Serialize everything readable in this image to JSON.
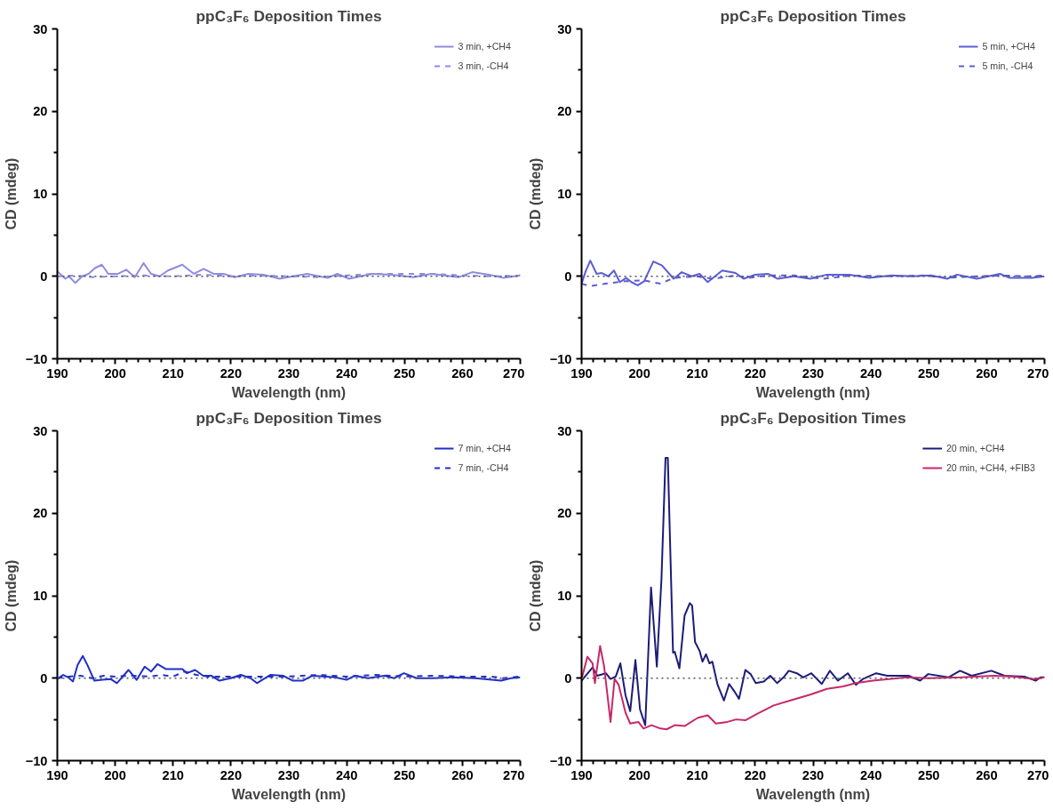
{
  "chart_data": [
    {
      "type": "line",
      "title": "ppC₃F₆ Deposition Times",
      "xlabel": "Wavelength (nm)",
      "ylabel": "CD (mdeg)",
      "xlim": [
        190,
        270
      ],
      "ylim": [
        -10,
        30
      ],
      "xticks": [
        190,
        {
          "value": 192,
          "label": null
        },
        {
          "value": 194,
          "label": null
        },
        {
          "value": 196,
          "label": null
        },
        {
          "value": 198,
          "label": null
        },
        200,
        {
          "value": 202,
          "label": null
        },
        {
          "value": 204,
          "label": null
        },
        {
          "value": 206,
          "label": null
        },
        {
          "value": 208,
          "label": null
        },
        210,
        {
          "value": 212,
          "label": null
        },
        {
          "value": 214,
          "label": null
        },
        {
          "value": 216,
          "label": null
        },
        {
          "value": 218,
          "label": null
        },
        220,
        {
          "value": 222,
          "label": null
        },
        {
          "value": 224,
          "label": null
        },
        {
          "value": 226,
          "label": null
        },
        {
          "value": 228,
          "label": null
        },
        230,
        {
          "value": 232,
          "label": null
        },
        {
          "value": 234,
          "label": null
        },
        {
          "value": 236,
          "label": null
        },
        {
          "value": 238,
          "label": null
        },
        240,
        {
          "value": 242,
          "label": null
        },
        {
          "value": 244,
          "label": null
        },
        {
          "value": 246,
          "label": null
        },
        {
          "value": 248,
          "label": null
        },
        250,
        {
          "value": 252,
          "label": null
        },
        {
          "value": 254,
          "label": null
        },
        {
          "value": 256,
          "label": null
        },
        {
          "value": 258,
          "label": null
        },
        260,
        {
          "value": 262,
          "label": null
        },
        {
          "value": 264,
          "label": null
        },
        {
          "value": 266,
          "label": null
        },
        {
          "value": 268,
          "label": null
        },
        270
      ],
      "yticks": [
        -10,
        {
          "value": -5,
          "label": null
        },
        0,
        {
          "value": 5,
          "label": null
        },
        10,
        {
          "value": 15,
          "label": null
        },
        20,
        {
          "value": 25,
          "label": null
        },
        30
      ],
      "legend": "top right",
      "ref_lines": [
        {
          "axis": "y",
          "value": 0,
          "color": "#555555",
          "line_style": "dotted"
        }
      ],
      "series": [
        {
          "name": "3 min, +CH4",
          "color": "#8f8be0",
          "line_style": "solid",
          "x": [
            190,
            191.4,
            192,
            193.1,
            194.3,
            195.4,
            196.5,
            197.7,
            198.8,
            200.5,
            201.9,
            203.4,
            204.9,
            206.2,
            207.7,
            209.1,
            211.6,
            213.6,
            215.3,
            217,
            218.7,
            220.7,
            223,
            225.6,
            228.4,
            230.7,
            233.2,
            236.7,
            238.4,
            240.4,
            244.4,
            247.8,
            251.5,
            254.6,
            259.4,
            261.7,
            264.6,
            267.1,
            270
          ],
          "values": [
            0.6,
            -0.3,
            0,
            -0.8,
            0,
            0.3,
            1.0,
            1.4,
            0.3,
            0.3,
            0.8,
            -0.1,
            1.6,
            0.3,
            0,
            0.7,
            1.4,
            0.3,
            0.9,
            0.3,
            0.3,
            -0.1,
            0.3,
            0.2,
            -0.3,
            0,
            0.3,
            -0.2,
            0.3,
            -0.3,
            0.3,
            0.2,
            -0.1,
            0.3,
            -0.1,
            0.5,
            0.2,
            -0.2,
            0.1
          ]
        },
        {
          "name": "3 min, -CH4",
          "color": "#8f8be0",
          "line_style": "dashed",
          "x": [
            190,
            193,
            196,
            200,
            205,
            210,
            215,
            220,
            225,
            230,
            235,
            240,
            245,
            250,
            255,
            260,
            265,
            270
          ],
          "values": [
            0,
            0.1,
            -0.1,
            0,
            0.1,
            0,
            0.2,
            0,
            0.1,
            0,
            -0.1,
            0.1,
            0.3,
            0.3,
            0.3,
            0.1,
            0,
            0.1
          ]
        }
      ]
    },
    {
      "type": "line",
      "title": "ppC₃F₆ Deposition Times",
      "xlabel": "Wavelength (nm)",
      "ylabel": "CD (mdeg)",
      "xlim": [
        190,
        270
      ],
      "ylim": [
        -10,
        30
      ],
      "xticks": [
        190,
        {
          "value": 192,
          "label": null
        },
        {
          "value": 194,
          "label": null
        },
        {
          "value": 196,
          "label": null
        },
        {
          "value": 198,
          "label": null
        },
        200,
        {
          "value": 202,
          "label": null
        },
        {
          "value": 204,
          "label": null
        },
        {
          "value": 206,
          "label": null
        },
        {
          "value": 208,
          "label": null
        },
        210,
        {
          "value": 212,
          "label": null
        },
        {
          "value": 214,
          "label": null
        },
        {
          "value": 216,
          "label": null
        },
        {
          "value": 218,
          "label": null
        },
        220,
        {
          "value": 222,
          "label": null
        },
        {
          "value": 224,
          "label": null
        },
        {
          "value": 226,
          "label": null
        },
        {
          "value": 228,
          "label": null
        },
        230,
        {
          "value": 232,
          "label": null
        },
        {
          "value": 234,
          "label": null
        },
        {
          "value": 236,
          "label": null
        },
        {
          "value": 238,
          "label": null
        },
        240,
        {
          "value": 242,
          "label": null
        },
        {
          "value": 244,
          "label": null
        },
        {
          "value": 246,
          "label": null
        },
        {
          "value": 248,
          "label": null
        },
        250,
        {
          "value": 252,
          "label": null
        },
        {
          "value": 254,
          "label": null
        },
        {
          "value": 256,
          "label": null
        },
        {
          "value": 258,
          "label": null
        },
        260,
        {
          "value": 262,
          "label": null
        },
        {
          "value": 264,
          "label": null
        },
        {
          "value": 266,
          "label": null
        },
        {
          "value": 268,
          "label": null
        },
        270
      ],
      "yticks": [
        -10,
        {
          "value": -5,
          "label": null
        },
        0,
        {
          "value": 5,
          "label": null
        },
        10,
        {
          "value": 15,
          "label": null
        },
        20,
        {
          "value": 25,
          "label": null
        },
        30
      ],
      "legend": "top right",
      "ref_lines": [
        {
          "axis": "y",
          "value": 0,
          "color": "#555555",
          "line_style": "dotted"
        }
      ],
      "series": [
        {
          "name": "5 min, +CH4",
          "color": "#5c5cd6",
          "line_style": "solid",
          "x": [
            190,
            190.7,
            191.5,
            192.6,
            193.5,
            194.6,
            195.6,
            196.6,
            197.7,
            198.6,
            199.7,
            200.8,
            202.4,
            203.9,
            205.9,
            207.3,
            209,
            210.4,
            211.8,
            214.3,
            216.6,
            218,
            220,
            222.2,
            223.9,
            226.7,
            229.5,
            232.4,
            236.3,
            239.7,
            243.6,
            247,
            250.4,
            253.2,
            254.9,
            258.3,
            262.3,
            264,
            267.9,
            270
          ],
          "values": [
            -0.9,
            0.6,
            1.9,
            0.3,
            0.4,
            0,
            0.7,
            -0.7,
            -0.2,
            -0.7,
            -1.1,
            -0.6,
            1.8,
            1.3,
            -0.3,
            0.5,
            0,
            0.3,
            -0.7,
            0.7,
            0.4,
            -0.3,
            0.2,
            0.3,
            -0.3,
            0,
            -0.3,
            0.2,
            0.2,
            -0.2,
            0.1,
            0,
            0.1,
            -0.3,
            0.2,
            -0.3,
            0.3,
            -0.2,
            -0.2,
            0
          ]
        },
        {
          "name": "5 min, -CH4",
          "color": "#5c5cd6",
          "line_style": "dashed",
          "x": [
            190,
            191.5,
            194.1,
            197.5,
            200.8,
            203.6,
            205.9,
            209.8,
            212.7,
            216.6,
            218.8,
            222.2,
            226.7,
            231.7,
            236.8,
            243.6,
            249.2,
            253.2,
            258.3,
            262.8,
            267.3,
            270
          ],
          "values": [
            -0.9,
            -1.2,
            -0.9,
            -0.6,
            -0.5,
            -0.9,
            -0.2,
            0,
            -0.3,
            0.1,
            -0.2,
            0.1,
            0.1,
            -0.3,
            0.1,
            0,
            0.1,
            -0.2,
            0,
            0.1,
            0,
            0.1
          ]
        }
      ]
    },
    {
      "type": "line",
      "title": "ppC₃F₆ Deposition Times",
      "xlabel": "Wavelength (nm)",
      "ylabel": "CD (mdeg)",
      "xlim": [
        190,
        270
      ],
      "ylim": [
        -10,
        30
      ],
      "xticks": [
        190,
        {
          "value": 192,
          "label": null
        },
        {
          "value": 194,
          "label": null
        },
        {
          "value": 196,
          "label": null
        },
        {
          "value": 198,
          "label": null
        },
        200,
        {
          "value": 202,
          "label": null
        },
        {
          "value": 204,
          "label": null
        },
        {
          "value": 206,
          "label": null
        },
        {
          "value": 208,
          "label": null
        },
        210,
        {
          "value": 212,
          "label": null
        },
        {
          "value": 214,
          "label": null
        },
        {
          "value": 216,
          "label": null
        },
        {
          "value": 218,
          "label": null
        },
        220,
        {
          "value": 222,
          "label": null
        },
        {
          "value": 224,
          "label": null
        },
        {
          "value": 226,
          "label": null
        },
        {
          "value": 228,
          "label": null
        },
        230,
        {
          "value": 232,
          "label": null
        },
        {
          "value": 234,
          "label": null
        },
        {
          "value": 236,
          "label": null
        },
        {
          "value": 238,
          "label": null
        },
        240,
        {
          "value": 242,
          "label": null
        },
        {
          "value": 244,
          "label": null
        },
        {
          "value": 246,
          "label": null
        },
        {
          "value": 248,
          "label": null
        },
        250,
        {
          "value": 252,
          "label": null
        },
        {
          "value": 254,
          "label": null
        },
        {
          "value": 256,
          "label": null
        },
        {
          "value": 258,
          "label": null
        },
        260,
        {
          "value": 262,
          "label": null
        },
        {
          "value": 264,
          "label": null
        },
        {
          "value": 266,
          "label": null
        },
        {
          "value": 268,
          "label": null
        },
        270
      ],
      "yticks": [
        -10,
        {
          "value": -5,
          "label": null
        },
        0,
        {
          "value": 5,
          "label": null
        },
        10,
        {
          "value": 15,
          "label": null
        },
        20,
        {
          "value": 25,
          "label": null
        },
        30
      ],
      "legend": "top right",
      "ref_lines": [
        {
          "axis": "y",
          "value": 0,
          "color": "#555555",
          "line_style": "dotted"
        }
      ],
      "series": [
        {
          "name": "7 min, +CH4",
          "color": "#1f2fc8",
          "line_style": "solid",
          "x": [
            190,
            191,
            191.9,
            192.7,
            193.5,
            194.4,
            195.2,
            196.4,
            197.8,
            199.2,
            200.3,
            202.3,
            203.7,
            205.1,
            206.2,
            207.3,
            208.8,
            210.4,
            211.6,
            212.4,
            213.8,
            215.2,
            216.6,
            218,
            220,
            221.7,
            223.4,
            224.5,
            226.8,
            229,
            230.7,
            232.4,
            234.1,
            238,
            240,
            241.4,
            243.7,
            246.5,
            248.2,
            249.9,
            252.1,
            254.9,
            258.3,
            262.2,
            266.7,
            268.4,
            270
          ],
          "values": [
            -0.1,
            0.4,
            0.1,
            -0.4,
            1.6,
            2.7,
            1.6,
            -0.3,
            -0.2,
            -0.1,
            -0.6,
            1.0,
            -0.2,
            1.4,
            0.8,
            1.7,
            1.1,
            1.1,
            1.1,
            0.6,
            1.0,
            0.3,
            0.3,
            -0.3,
            0,
            0.4,
            0,
            -0.6,
            0.4,
            0.3,
            -0.3,
            -0.3,
            0.3,
            0.1,
            -0.2,
            0.3,
            0,
            0.3,
            0,
            0.6,
            0,
            0,
            0.1,
            0,
            -0.3,
            0,
            0.1
          ]
        },
        {
          "name": "7 min, -CH4",
          "color": "#1f2fc8",
          "line_style": "dashed",
          "x": [
            190,
            192,
            194,
            196,
            198,
            200,
            203,
            206,
            208,
            210,
            212,
            214,
            216,
            220,
            225,
            230,
            235,
            240,
            245,
            250,
            255,
            260,
            265,
            267,
            270
          ],
          "values": [
            0,
            0.2,
            0.3,
            0,
            0.3,
            0.2,
            0.3,
            0.2,
            0.4,
            0.2,
            0.8,
            0.4,
            0.2,
            0.2,
            0.2,
            0.2,
            0.4,
            0.2,
            0.4,
            0.2,
            0.3,
            0.2,
            0.2,
            0,
            0.2
          ]
        }
      ]
    },
    {
      "type": "line",
      "title": "ppC₃F₆ Deposition Times",
      "xlabel": "Wavelength (nm)",
      "ylabel": "CD (mdeg)",
      "xlim": [
        190,
        270
      ],
      "ylim": [
        -10,
        30
      ],
      "xticks": [
        190,
        {
          "value": 192,
          "label": null
        },
        {
          "value": 194,
          "label": null
        },
        {
          "value": 196,
          "label": null
        },
        {
          "value": 198,
          "label": null
        },
        200,
        {
          "value": 202,
          "label": null
        },
        {
          "value": 204,
          "label": null
        },
        {
          "value": 206,
          "label": null
        },
        {
          "value": 208,
          "label": null
        },
        210,
        {
          "value": 212,
          "label": null
        },
        {
          "value": 214,
          "label": null
        },
        {
          "value": 216,
          "label": null
        },
        {
          "value": 218,
          "label": null
        },
        220,
        {
          "value": 222,
          "label": null
        },
        {
          "value": 224,
          "label": null
        },
        {
          "value": 226,
          "label": null
        },
        {
          "value": 228,
          "label": null
        },
        230,
        {
          "value": 232,
          "label": null
        },
        {
          "value": 234,
          "label": null
        },
        {
          "value": 236,
          "label": null
        },
        {
          "value": 238,
          "label": null
        },
        240,
        {
          "value": 242,
          "label": null
        },
        {
          "value": 244,
          "label": null
        },
        {
          "value": 246,
          "label": null
        },
        {
          "value": 248,
          "label": null
        },
        250,
        {
          "value": 252,
          "label": null
        },
        {
          "value": 254,
          "label": null
        },
        {
          "value": 256,
          "label": null
        },
        {
          "value": 258,
          "label": null
        },
        260,
        {
          "value": 262,
          "label": null
        },
        {
          "value": 264,
          "label": null
        },
        {
          "value": 266,
          "label": null
        },
        {
          "value": 268,
          "label": null
        },
        270
      ],
      "yticks": [
        -10,
        {
          "value": -5,
          "label": null
        },
        0,
        {
          "value": 5,
          "label": null
        },
        10,
        {
          "value": 15,
          "label": null
        },
        20,
        {
          "value": 25,
          "label": null
        },
        30
      ],
      "legend": "top right",
      "ref_lines": [
        {
          "axis": "y",
          "value": 0,
          "color": "#555555",
          "line_style": "dotted"
        }
      ],
      "series": [
        {
          "name": "20 min, +CH4",
          "color": "#1c1c78",
          "line_style": "solid",
          "x": [
            190,
            191.9,
            192.7,
            194.2,
            195,
            195.9,
            196.7,
            197.6,
            198.4,
            199.3,
            200.1,
            201,
            202,
            203,
            203.8,
            204.5,
            204.9,
            205.8,
            206.1,
            206.9,
            207.8,
            208.7,
            209.1,
            209.6,
            210.4,
            210.9,
            211.5,
            212.1,
            212.6,
            213.5,
            214.6,
            215.5,
            216.4,
            217.2,
            218.3,
            219.2,
            220.1,
            221.5,
            222.6,
            223.8,
            224.9,
            225.8,
            227.2,
            228.3,
            229.7,
            231.5,
            232.9,
            234.3,
            236,
            237.4,
            238.6,
            240.9,
            242.8,
            246.5,
            248.5,
            249.9,
            253.4,
            255.4,
            257.4,
            260.8,
            263.1,
            266.5,
            268.5,
            269.3,
            270
          ],
          "values": [
            -0.3,
            1.3,
            0.3,
            0.6,
            -0.1,
            0.2,
            1.8,
            -2.1,
            -4.0,
            2.2,
            -3.8,
            -5.7,
            11.0,
            1.4,
            12,
            26.7,
            26.7,
            3.1,
            3.2,
            1.2,
            7.6,
            9.1,
            8.8,
            4.4,
            3.3,
            2.0,
            2.9,
            1.8,
            2.0,
            -0.8,
            -2.7,
            -0.7,
            -1.6,
            -2.5,
            1.0,
            0.5,
            -0.6,
            -0.4,
            0.3,
            -0.6,
            0.1,
            0.9,
            0.6,
            0.1,
            0.6,
            -0.7,
            0.9,
            -0.3,
            0.6,
            -0.8,
            -0.1,
            0.6,
            0.3,
            0.3,
            -0.3,
            0.5,
            0.1,
            0.9,
            0.3,
            0.9,
            0.3,
            0.2,
            -0.3,
            0.1,
            0.1
          ]
        },
        {
          "name": "20 min, +CH4, +FIB3",
          "color": "#c8286a",
          "line_style": "solid",
          "x": [
            190,
            191,
            191.9,
            192.3,
            193.2,
            193.9,
            195,
            195.7,
            196.4,
            197.6,
            198.4,
            199.8,
            200.7,
            202.1,
            203.6,
            204.7,
            206.1,
            207.8,
            210.1,
            211.8,
            213.2,
            215.2,
            216.7,
            218.3,
            220.4,
            223.2,
            226.1,
            229.5,
            232.4,
            235.2,
            237.4,
            240.3,
            243.1,
            246,
            249.9,
            255.6,
            261.3,
            264.7,
            268.2,
            270
          ],
          "values": [
            -0.1,
            2.6,
            1.8,
            -0.6,
            3.9,
            1.4,
            -5.3,
            -0.1,
            -0.8,
            -4.2,
            -5.5,
            -5.3,
            -6.1,
            -5.7,
            -6.1,
            -6.2,
            -5.7,
            -5.8,
            -4.8,
            -4.5,
            -5.5,
            -5.3,
            -5.0,
            -5.1,
            -4.3,
            -3.3,
            -2.7,
            -2.0,
            -1.3,
            -1.0,
            -0.6,
            -0.3,
            -0.1,
            0.1,
            0,
            0.1,
            0.3,
            0.2,
            -0.1,
            0.1
          ]
        }
      ]
    }
  ]
}
